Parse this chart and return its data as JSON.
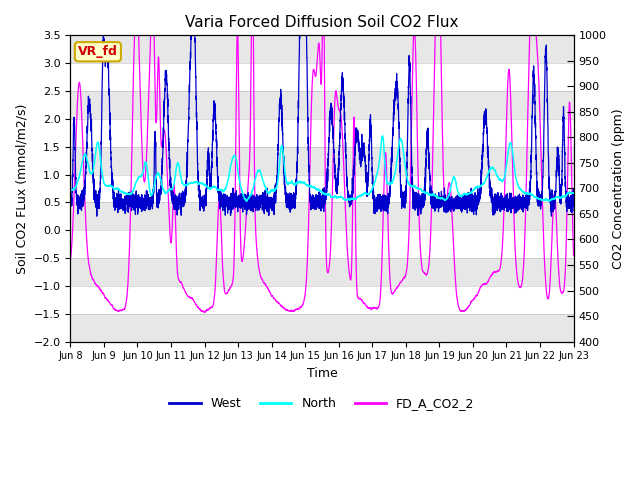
{
  "title": "Varia Forced Diffusion Soil CO2 Flux",
  "xlabel": "Time",
  "ylabel_left": "Soil CO2 FLux (mmol/m2/s)",
  "ylabel_right": "CO2 Concentration (ppm)",
  "ylim_left": [
    -2.0,
    3.5
  ],
  "ylim_right": [
    400,
    1000
  ],
  "yticks_left": [
    -2.0,
    -1.5,
    -1.0,
    -0.5,
    0.0,
    0.5,
    1.0,
    1.5,
    2.0,
    2.5,
    3.0,
    3.5
  ],
  "yticks_right": [
    400,
    450,
    500,
    550,
    600,
    650,
    700,
    750,
    800,
    850,
    900,
    950,
    1000
  ],
  "xtick_labels": [
    "Jun 8",
    "Jun 9",
    "Jun 10",
    "Jun 11",
    "Jun 12",
    "Jun 13",
    "Jun 14",
    "Jun 15",
    "Jun 16",
    "Jun 17",
    "Jun 18",
    "Jun 19",
    "Jun 20",
    "Jun 21",
    "Jun 22",
    "Jun 23"
  ],
  "legend_labels": [
    "West",
    "North",
    "FD_A_CO2_2"
  ],
  "legend_colors": [
    "#0000cd",
    "#00ffff",
    "#ff00ff"
  ],
  "annotation_text": "VR_fd",
  "annotation_fg": "#cc0000",
  "annotation_bg": "#ffffcc",
  "annotation_edge": "#ccaa00",
  "bg_band_color": "#d0d0d0",
  "bg_band_alpha": 0.5,
  "seed": 42
}
